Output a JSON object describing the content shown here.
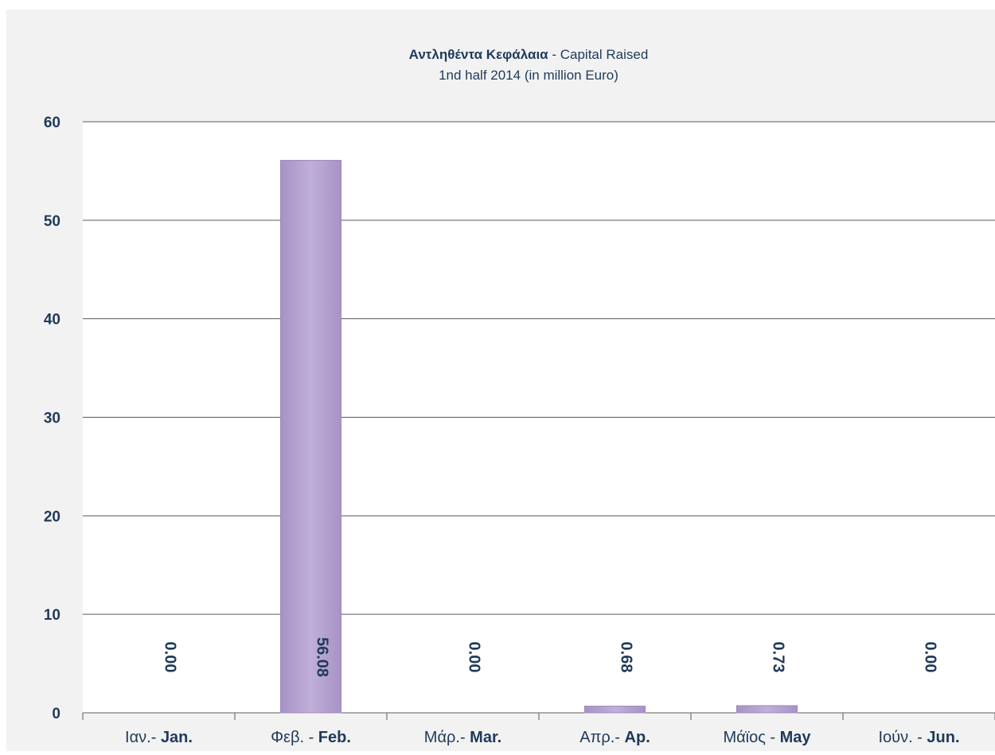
{
  "chart_data": {
    "type": "bar",
    "title_bold": "Αντληθέντα  Κεφάλαια",
    "title_rest": " - Capital Raised",
    "subtitle": "1nd half 2014 (in million Euro)",
    "categories": [
      {
        "gr": "Ιαν.- ",
        "en": "Jan."
      },
      {
        "gr": "Φεβ. - ",
        "en": "Feb."
      },
      {
        "gr": "Μάρ.- ",
        "en": "Mar."
      },
      {
        "gr": "Απρ.- ",
        "en": "Ap."
      },
      {
        "gr": "Μάϊος - ",
        "en": "May"
      },
      {
        "gr": "Ιούν. - ",
        "en": "Jun."
      }
    ],
    "values": [
      0.0,
      56.08,
      0.0,
      0.68,
      0.73,
      0.0
    ],
    "data_labels": [
      "0.00",
      "56.08",
      "0.00",
      "0.68",
      "0.73",
      "0.00"
    ],
    "yticks": [
      "0",
      "10",
      "20",
      "30",
      "40",
      "50",
      "60"
    ],
    "ylim": [
      0,
      60
    ],
    "grid": true,
    "colors": {
      "panel": "#f2f2f2",
      "plot": "#ffffff",
      "bar": "#bcaad4",
      "bar_edge": "#9e88bd",
      "text": "#1f3a5a",
      "grid": "#595959"
    }
  }
}
